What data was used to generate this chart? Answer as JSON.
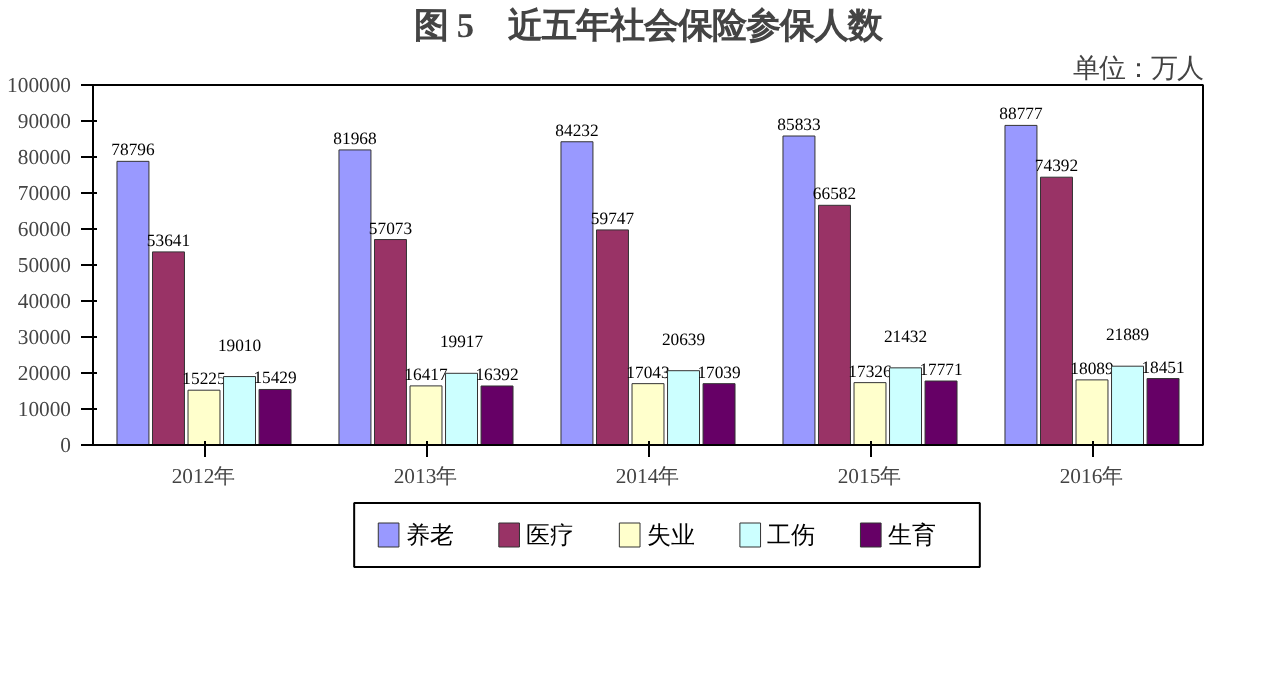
{
  "chart_data": {
    "type": "bar",
    "title": "图 5　近五年社会保险参保人数",
    "annotations": [
      "单位：万人"
    ],
    "categories": [
      "2012年",
      "2013年",
      "2014年",
      "2015年",
      "2016年"
    ],
    "series": [
      {
        "name": "养老",
        "color": "#9999ff",
        "values": [
          78796,
          81968,
          84232,
          85833,
          88777
        ]
      },
      {
        "name": "医疗",
        "color": "#993366",
        "values": [
          53641,
          57073,
          59747,
          66582,
          74392
        ]
      },
      {
        "name": "失业",
        "color": "#ffffcc",
        "values": [
          15225,
          16417,
          17043,
          17326,
          18089
        ]
      },
      {
        "name": "工伤",
        "color": "#ccffff",
        "values": [
          19010,
          19917,
          20639,
          21432,
          21889
        ]
      },
      {
        "name": "生育",
        "color": "#660066",
        "values": [
          15429,
          16392,
          17039,
          17771,
          18451
        ]
      }
    ],
    "ylim": [
      0,
      100000
    ],
    "yticks": [
      0,
      10000,
      20000,
      30000,
      40000,
      50000,
      60000,
      70000,
      80000,
      90000,
      100000
    ],
    "data_labels": true,
    "grid": false,
    "legend": "bottom"
  }
}
